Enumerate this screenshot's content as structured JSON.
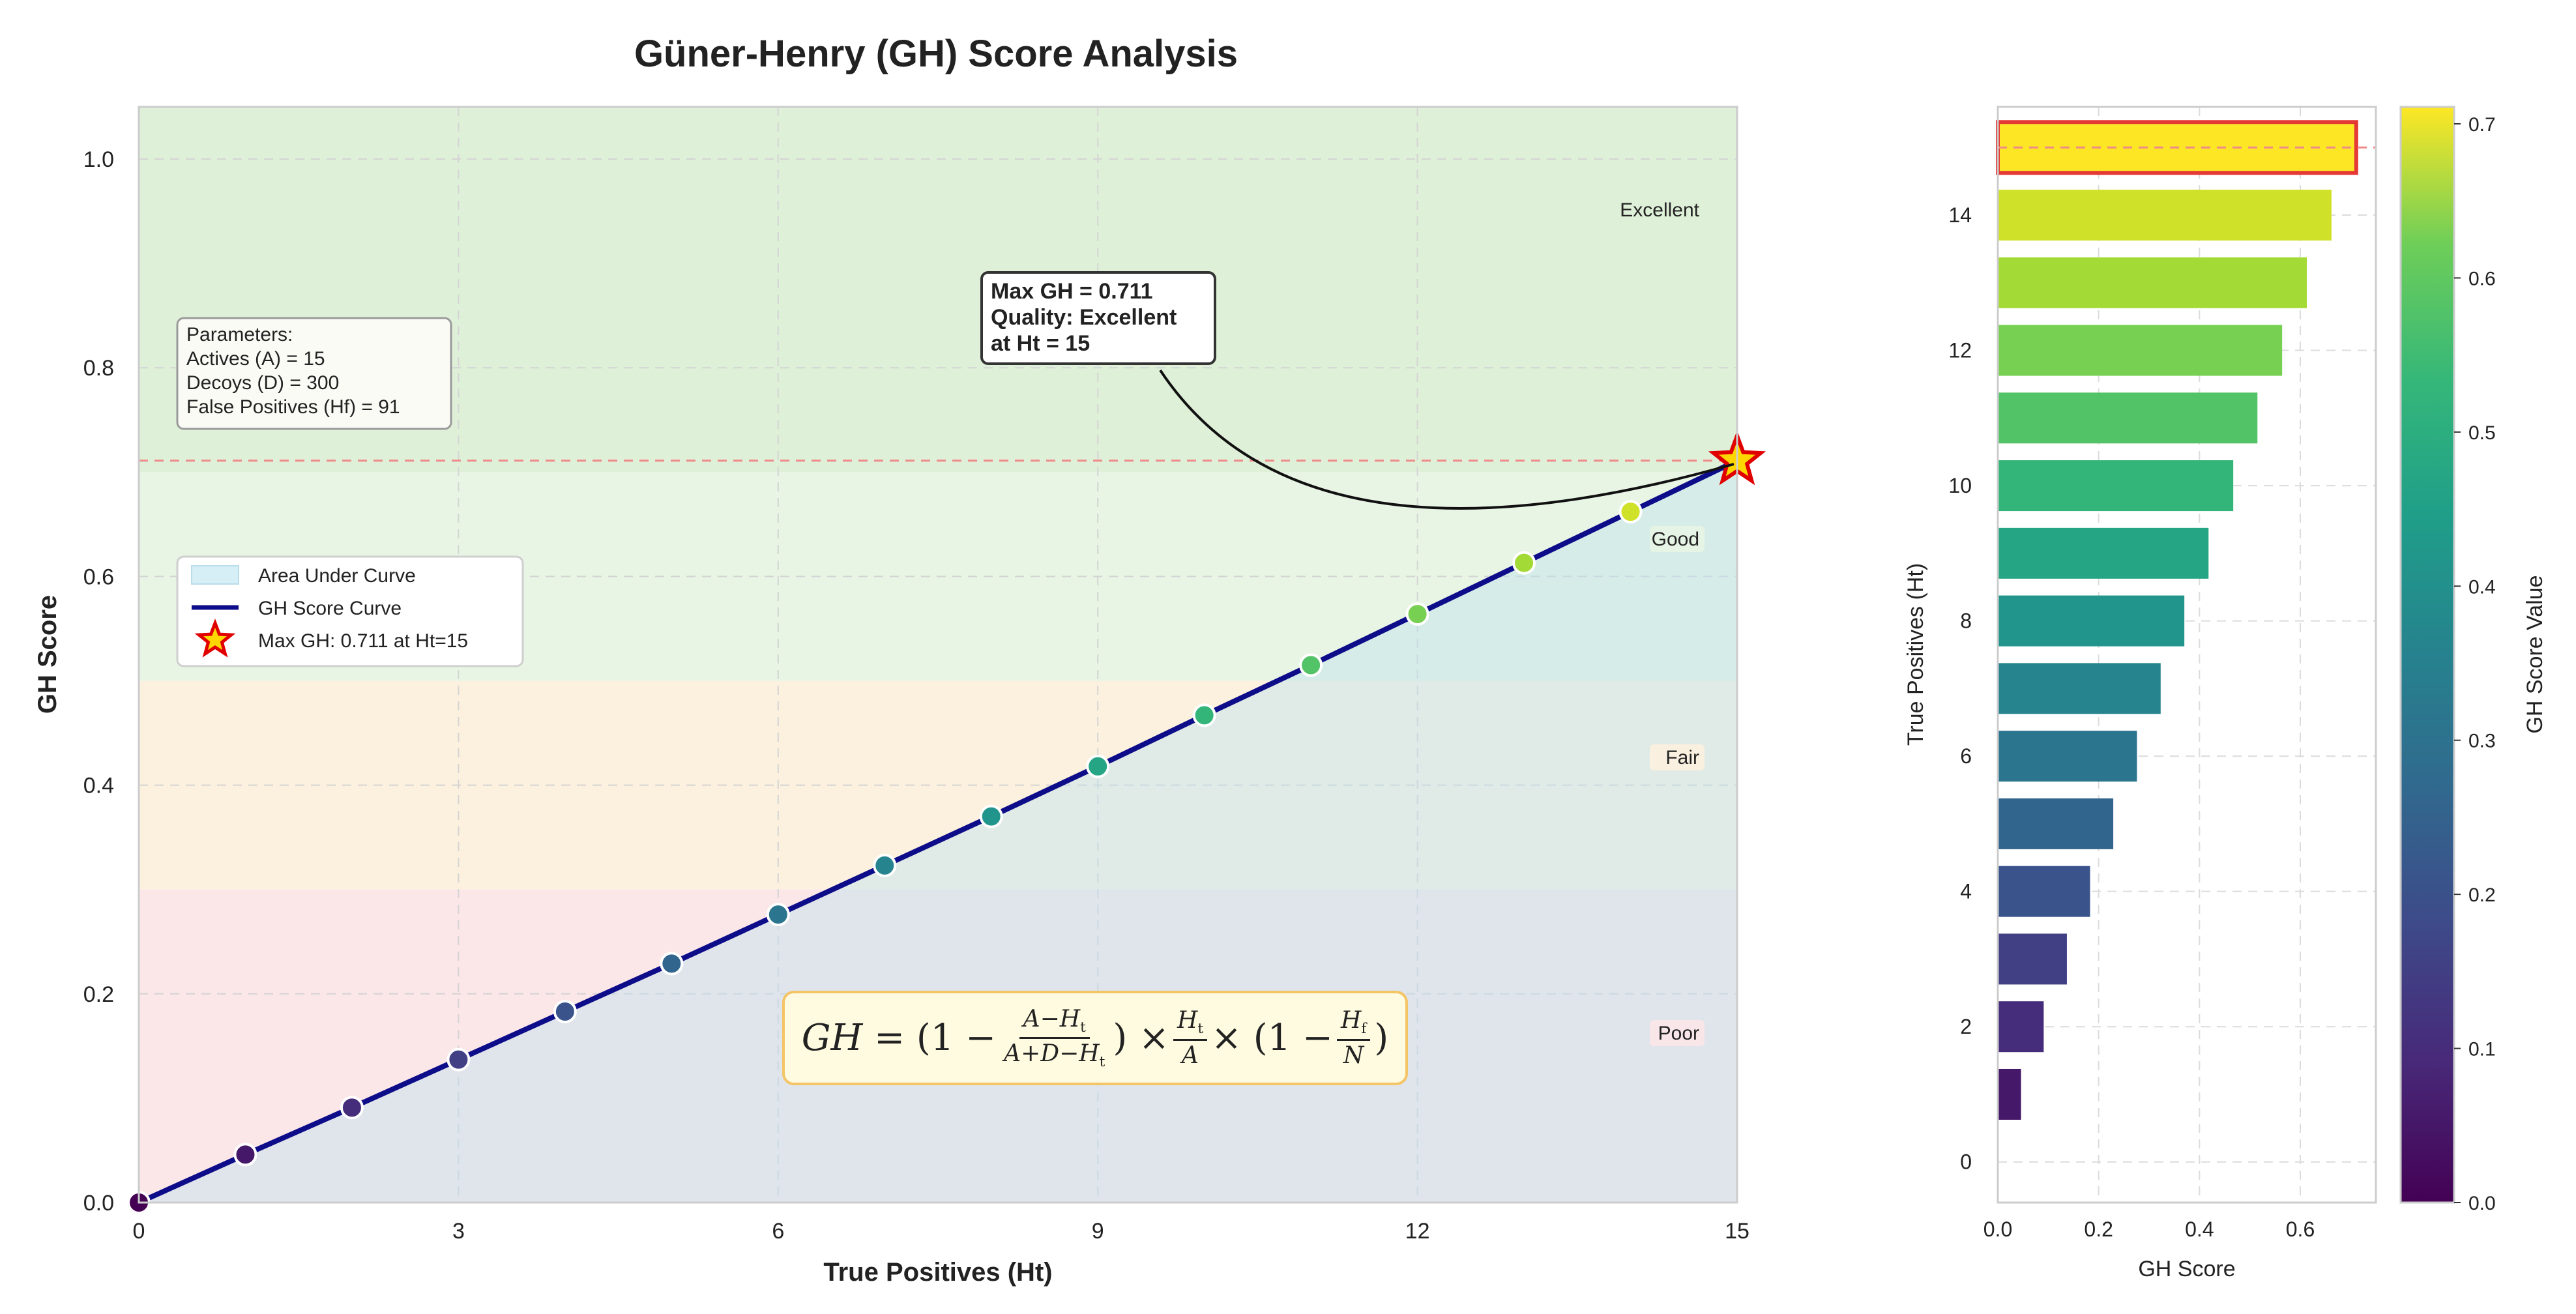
{
  "title": "Güner-Henry (GH) Score Analysis",
  "formula": {
    "lhs": "GH",
    "term1_num": "A−H",
    "term1_den": "A+D−H",
    "mid": "×",
    "frac2_num": "H",
    "frac2_den": "A",
    "term3_num": "H",
    "term3_den": "N",
    "sub_t": "t",
    "sub_f": "f"
  },
  "parameters": {
    "heading": "Parameters:",
    "actives": "Actives (A) = 15",
    "decoys": "Decoys (D) = 300",
    "false_pos": "False Positives (Hf) = 91"
  },
  "annotation": {
    "line1": "Max GH = 0.711",
    "line2": "Quality: Excellent",
    "line3": "at Ht = 15"
  },
  "zones": [
    {
      "label": "Excellent",
      "from": 0.7,
      "to": 1.05,
      "color": "#dff0d8"
    },
    {
      "label": "Good",
      "from": 0.5,
      "to": 0.7,
      "color": "#e8f5e4"
    },
    {
      "label": "Fair",
      "from": 0.3,
      "to": 0.5,
      "color": "#fcf1de"
    },
    {
      "label": "Poor",
      "from": 0.0,
      "to": 0.3,
      "color": "#fbe6e8"
    }
  ],
  "legend": {
    "area": "Area Under Curve",
    "curve": "GH Score Curve",
    "max": "Max GH: 0.711 at Ht=15"
  },
  "chart_data": [
    {
      "type": "line",
      "title": "Güner-Henry (GH) Score Analysis",
      "xlabel": "True Positives (Ht)",
      "ylabel": "GH Score",
      "xlim": [
        0,
        15
      ],
      "ylim": [
        0,
        1.05
      ],
      "xticks": [
        0,
        3,
        6,
        9,
        12,
        15
      ],
      "yticks": [
        0.0,
        0.2,
        0.4,
        0.6,
        0.8,
        1.0
      ],
      "xtick_labels": [
        "0",
        "3",
        "6",
        "9",
        "12",
        "15"
      ],
      "ytick_labels": [
        "0.0",
        "0.2",
        "0.4",
        "0.6",
        "0.8",
        "1.0"
      ],
      "x": [
        0,
        1,
        2,
        3,
        4,
        5,
        6,
        7,
        8,
        9,
        10,
        11,
        12,
        13,
        14,
        15
      ],
      "series": [
        {
          "name": "GH Score Curve",
          "values": [
            0.0,
            0.046,
            0.091,
            0.137,
            0.183,
            0.229,
            0.276,
            0.323,
            0.37,
            0.418,
            0.467,
            0.515,
            0.564,
            0.613,
            0.662,
            0.711
          ]
        }
      ],
      "max_point": {
        "x": 15,
        "y": 0.711
      },
      "reference_line_y": 0.711,
      "grid": true
    },
    {
      "type": "bar",
      "orientation": "horizontal",
      "xlabel": "GH Score",
      "ylabel": "True Positives (Ht)",
      "xlim": [
        0,
        0.75
      ],
      "ylim": [
        -0.6,
        15.6
      ],
      "xticks": [
        0.0,
        0.2,
        0.4,
        0.6
      ],
      "xtick_labels": [
        "0.0",
        "0.2",
        "0.4",
        "0.6"
      ],
      "yticks": [
        0,
        2,
        4,
        6,
        8,
        10,
        12,
        14
      ],
      "ytick_labels": [
        "0",
        "2",
        "4",
        "6",
        "8",
        "10",
        "12",
        "14"
      ],
      "categories": [
        1,
        2,
        3,
        4,
        5,
        6,
        7,
        8,
        9,
        10,
        11,
        12,
        13,
        14,
        15
      ],
      "values": [
        0.046,
        0.091,
        0.137,
        0.183,
        0.229,
        0.276,
        0.323,
        0.37,
        0.418,
        0.467,
        0.515,
        0.564,
        0.613,
        0.662,
        0.711
      ],
      "highlight_category": 15,
      "grid": true
    },
    {
      "type": "heatmap",
      "role": "colorbar",
      "label": "GH Score Value",
      "range": [
        0.0,
        0.711
      ],
      "ticks": [
        0.0,
        0.1,
        0.2,
        0.3,
        0.4,
        0.5,
        0.6,
        0.7
      ],
      "tick_labels": [
        "0.0",
        "0.1",
        "0.2",
        "0.3",
        "0.4",
        "0.5",
        "0.6",
        "0.7"
      ],
      "colormap": "viridis"
    }
  ]
}
